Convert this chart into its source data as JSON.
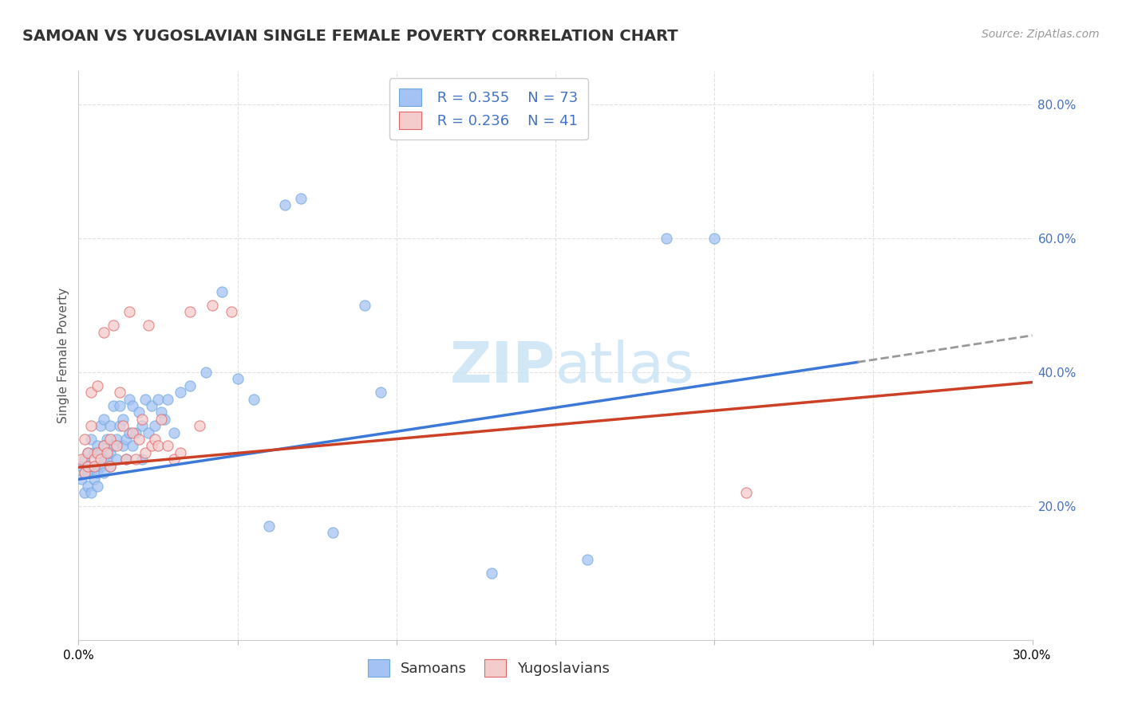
{
  "title": "SAMOAN VS YUGOSLAVIAN SINGLE FEMALE POVERTY CORRELATION CHART",
  "source": "Source: ZipAtlas.com",
  "ylabel": "Single Female Poverty",
  "xlim": [
    0.0,
    0.3
  ],
  "ylim": [
    0.0,
    0.85
  ],
  "yticks_right": [
    0.2,
    0.4,
    0.6,
    0.8
  ],
  "ytick_right_labels": [
    "20.0%",
    "40.0%",
    "60.0%",
    "80.0%"
  ],
  "blue_R": "0.355",
  "blue_N": "73",
  "pink_R": "0.236",
  "pink_N": "41",
  "blue_color": "#a4c2f4",
  "pink_color": "#f4cccc",
  "blue_scatter_edge": "#6fa8dc",
  "pink_scatter_edge": "#e06666",
  "blue_line_color": "#3c78d8",
  "pink_line_color": "#cc4125",
  "dashed_line_color": "#999999",
  "watermark_color": "#cce5f5",
  "legend_label_blue": "Samoans",
  "legend_label_pink": "Yugoslavians",
  "samoans_x": [
    0.001,
    0.001,
    0.002,
    0.002,
    0.002,
    0.003,
    0.003,
    0.003,
    0.003,
    0.004,
    0.004,
    0.004,
    0.005,
    0.005,
    0.005,
    0.006,
    0.006,
    0.006,
    0.007,
    0.007,
    0.007,
    0.008,
    0.008,
    0.008,
    0.008,
    0.009,
    0.009,
    0.01,
    0.01,
    0.01,
    0.011,
    0.011,
    0.012,
    0.012,
    0.013,
    0.013,
    0.014,
    0.014,
    0.015,
    0.015,
    0.016,
    0.016,
    0.017,
    0.017,
    0.018,
    0.019,
    0.02,
    0.02,
    0.021,
    0.022,
    0.023,
    0.024,
    0.025,
    0.026,
    0.027,
    0.028,
    0.03,
    0.032,
    0.035,
    0.04,
    0.045,
    0.05,
    0.055,
    0.06,
    0.065,
    0.07,
    0.08,
    0.09,
    0.095,
    0.13,
    0.16,
    0.185,
    0.2
  ],
  "samoans_y": [
    0.26,
    0.24,
    0.27,
    0.25,
    0.22,
    0.28,
    0.25,
    0.23,
    0.26,
    0.3,
    0.25,
    0.22,
    0.28,
    0.24,
    0.26,
    0.29,
    0.25,
    0.23,
    0.32,
    0.26,
    0.28,
    0.33,
    0.27,
    0.25,
    0.29,
    0.27,
    0.3,
    0.32,
    0.26,
    0.28,
    0.35,
    0.29,
    0.3,
    0.27,
    0.32,
    0.35,
    0.29,
    0.33,
    0.3,
    0.27,
    0.36,
    0.31,
    0.29,
    0.35,
    0.31,
    0.34,
    0.32,
    0.27,
    0.36,
    0.31,
    0.35,
    0.32,
    0.36,
    0.34,
    0.33,
    0.36,
    0.31,
    0.37,
    0.38,
    0.4,
    0.52,
    0.39,
    0.36,
    0.17,
    0.65,
    0.66,
    0.16,
    0.5,
    0.37,
    0.1,
    0.12,
    0.6,
    0.6
  ],
  "yugoslavians_x": [
    0.001,
    0.002,
    0.002,
    0.003,
    0.003,
    0.004,
    0.004,
    0.005,
    0.005,
    0.006,
    0.006,
    0.007,
    0.008,
    0.008,
    0.009,
    0.01,
    0.01,
    0.011,
    0.012,
    0.013,
    0.014,
    0.015,
    0.016,
    0.017,
    0.018,
    0.019,
    0.02,
    0.021,
    0.022,
    0.023,
    0.024,
    0.025,
    0.026,
    0.028,
    0.03,
    0.032,
    0.035,
    0.038,
    0.042,
    0.048,
    0.21
  ],
  "yugoslavians_y": [
    0.27,
    0.3,
    0.25,
    0.28,
    0.26,
    0.37,
    0.32,
    0.27,
    0.26,
    0.38,
    0.28,
    0.27,
    0.46,
    0.29,
    0.28,
    0.3,
    0.26,
    0.47,
    0.29,
    0.37,
    0.32,
    0.27,
    0.49,
    0.31,
    0.27,
    0.3,
    0.33,
    0.28,
    0.47,
    0.29,
    0.3,
    0.29,
    0.33,
    0.29,
    0.27,
    0.28,
    0.49,
    0.32,
    0.5,
    0.49,
    0.22
  ],
  "blue_trend_x": [
    0.0,
    0.245
  ],
  "blue_trend_y": [
    0.24,
    0.415
  ],
  "pink_trend_x": [
    0.0,
    0.3
  ],
  "pink_trend_y": [
    0.258,
    0.385
  ],
  "dash_trend_x": [
    0.245,
    0.3
  ],
  "dash_trend_y": [
    0.415,
    0.455
  ],
  "background_color": "#ffffff",
  "grid_color": "#e0e0e0",
  "title_fontsize": 14,
  "axis_label_fontsize": 11,
  "tick_fontsize": 11,
  "source_fontsize": 10,
  "legend_fontsize": 13
}
